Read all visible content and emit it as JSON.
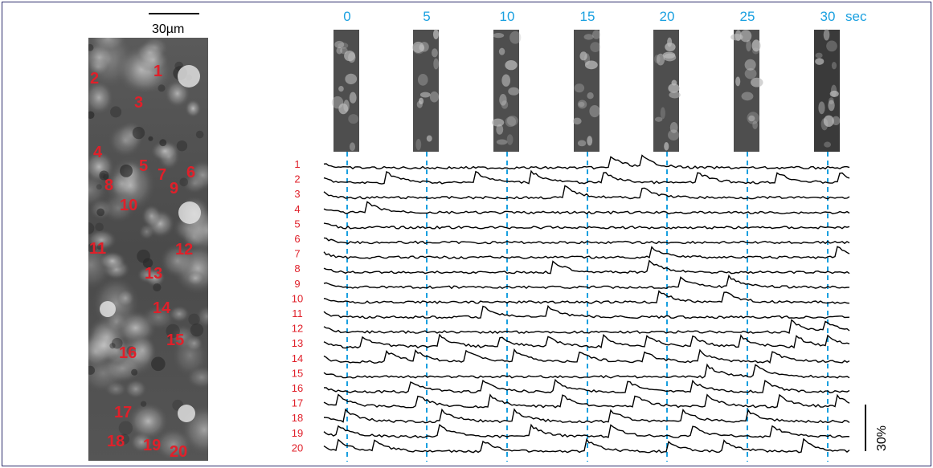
{
  "scale_bar": {
    "label": "30µm"
  },
  "amplitude_bar": {
    "label": "30%"
  },
  "time_axis": {
    "ticks": [
      "0",
      "5",
      "10",
      "15",
      "20",
      "25",
      "30"
    ],
    "unit": "sec"
  },
  "cells": [
    "1",
    "2",
    "3",
    "4",
    "5",
    "6",
    "7",
    "8",
    "9",
    "10",
    "11",
    "12",
    "13",
    "14",
    "15",
    "16",
    "17",
    "18",
    "19",
    "20"
  ],
  "colors": {
    "label_red": "#e0202a",
    "time_blue": "#1aa0e0",
    "trace_black": "#000000"
  }
}
